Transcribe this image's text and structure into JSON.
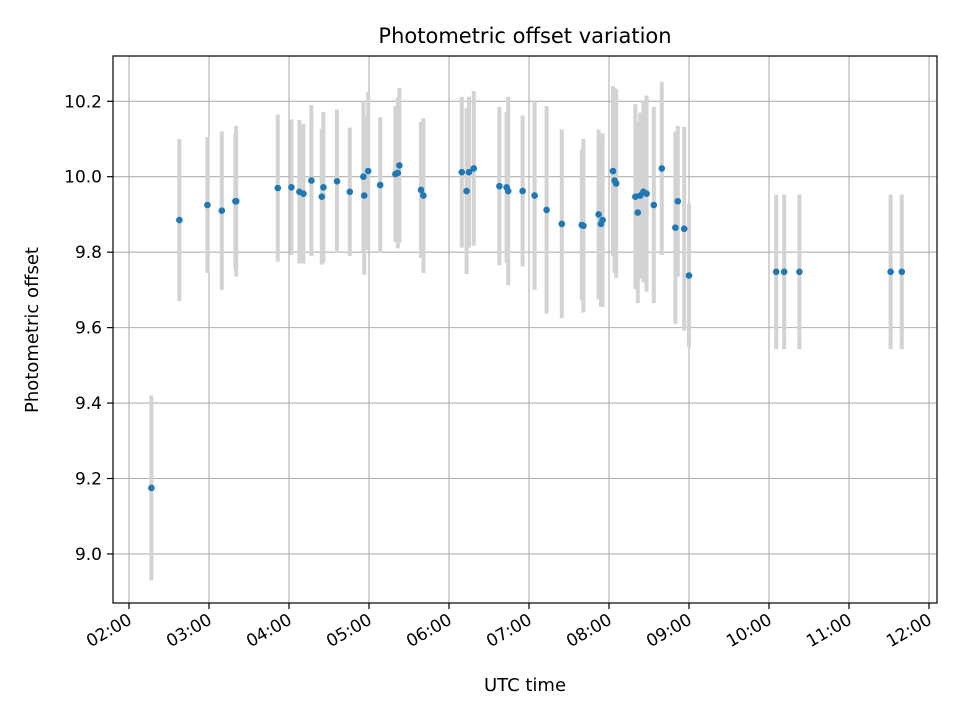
{
  "chart_data": {
    "type": "scatter",
    "title": "Photometric offset variation",
    "xlabel": "UTC time",
    "ylabel": "Photometric offset",
    "x_unit": "hours UTC",
    "xlim": [
      1.8,
      12.1
    ],
    "ylim": [
      8.87,
      10.32
    ],
    "xticks": [
      2,
      3,
      4,
      5,
      6,
      7,
      8,
      9,
      10,
      11,
      12
    ],
    "xtick_labels": [
      "02:00",
      "03:00",
      "04:00",
      "05:00",
      "06:00",
      "07:00",
      "08:00",
      "09:00",
      "10:00",
      "11:00",
      "12:00"
    ],
    "yticks": [
      9.0,
      9.2,
      9.4,
      9.6,
      9.8,
      10.0,
      10.2
    ],
    "ytick_labels": [
      "9.0",
      "9.2",
      "9.4",
      "9.6",
      "9.8",
      "10.0",
      "10.2"
    ],
    "grid": true,
    "colors": {
      "marker": "#1f77b4",
      "errorbar": "#d3d3d3",
      "grid": "#b0b0b0"
    },
    "series": [
      {
        "x": [
          2.28,
          2.63,
          2.98,
          3.16,
          3.33,
          3.34,
          3.86,
          4.03,
          4.13,
          4.18,
          4.28,
          4.41,
          4.43,
          4.6,
          4.76,
          4.93,
          4.94,
          4.99,
          5.14,
          5.33,
          5.36,
          5.38,
          5.65,
          5.68,
          6.16,
          6.22,
          6.25,
          6.31,
          6.63,
          6.72,
          6.74,
          6.92,
          7.07,
          7.22,
          7.41,
          7.66,
          7.68,
          7.87,
          7.9,
          7.92,
          8.05,
          8.07,
          8.09,
          8.33,
          8.36,
          8.39,
          8.43,
          8.47,
          8.56,
          8.66,
          8.83,
          8.86,
          8.94,
          9.0,
          10.09,
          10.19,
          10.38,
          11.52,
          11.66
        ],
        "y": [
          9.175,
          9.885,
          9.925,
          9.91,
          9.935,
          9.935,
          9.97,
          9.972,
          9.96,
          9.955,
          9.99,
          9.947,
          9.972,
          9.988,
          9.96,
          10.0,
          9.95,
          10.015,
          9.978,
          10.007,
          10.01,
          10.03,
          9.965,
          9.95,
          10.012,
          9.962,
          10.012,
          10.022,
          9.975,
          9.972,
          9.962,
          9.962,
          9.95,
          9.912,
          9.875,
          9.872,
          9.87,
          9.9,
          9.875,
          9.885,
          10.015,
          9.99,
          9.982,
          9.947,
          9.905,
          9.95,
          9.96,
          9.955,
          9.925,
          10.022,
          9.865,
          9.935,
          9.862,
          9.738,
          9.748,
          9.748,
          9.748,
          9.748,
          9.748
        ],
        "yerr": [
          0.245,
          0.215,
          0.18,
          0.21,
          0.18,
          0.2,
          0.195,
          0.18,
          0.19,
          0.185,
          0.2,
          0.18,
          0.2,
          0.19,
          0.17,
          0.2,
          0.21,
          0.21,
          0.18,
          0.18,
          0.2,
          0.205,
          0.18,
          0.205,
          0.2,
          0.22,
          0.2,
          0.205,
          0.21,
          0.2,
          0.25,
          0.2,
          0.25,
          0.275,
          0.25,
          0.2,
          0.23,
          0.225,
          0.22,
          0.23,
          0.225,
          0.245,
          0.25,
          0.245,
          0.24,
          0.22,
          0.24,
          0.26,
          0.26,
          0.23,
          0.255,
          0.2,
          0.27,
          0.19,
          0.205,
          0.205,
          0.205,
          0.205,
          0.205
        ]
      }
    ]
  }
}
